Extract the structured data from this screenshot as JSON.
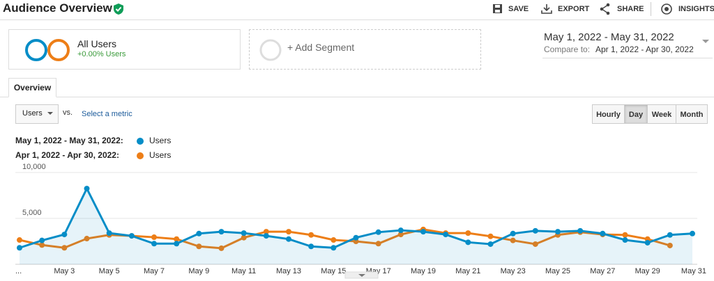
{
  "header": {
    "title": "Audience Overview",
    "actions": [
      "SAVE",
      "EXPORT",
      "SHARE",
      "INSIGHTS"
    ]
  },
  "segments": {
    "name": "All Users",
    "change": "+0.00% Users",
    "add": "+ Add Segment"
  },
  "date_range": {
    "range": "May 1, 2022 - May 31, 2022",
    "compare_label": "Compare to:",
    "compare": "Apr 1, 2022 - Apr 30, 2022"
  },
  "tab": "Overview",
  "metric": {
    "selected": "Users",
    "vs": "vs.",
    "select": "Select a metric"
  },
  "granularity": [
    "Hourly",
    "Day",
    "Week",
    "Month"
  ],
  "active_granularity": "Day",
  "chart_data": {
    "type": "line",
    "categories": [
      "...",
      null,
      "May 3",
      null,
      "May 5",
      null,
      "May 7",
      null,
      "May 9",
      null,
      "May 11",
      null,
      "May 13",
      null,
      "May 15",
      null,
      "May 17",
      null,
      "May 19",
      null,
      "May 21",
      null,
      "May 23",
      null,
      "May 25",
      null,
      "May 27",
      null,
      "May 29",
      null,
      "May 31"
    ],
    "ylim": [
      0,
      10000
    ],
    "yticks": [
      {
        "value": 5000,
        "label": "5,000"
      },
      {
        "value": 10000,
        "label": "10,000"
      }
    ],
    "grid": true,
    "series": [
      {
        "range": "May 1, 2022 - May 31, 2022:",
        "name": "Users",
        "color": "#058dc7",
        "area": true,
        "values": [
          1800,
          2600,
          3250,
          8250,
          3400,
          3100,
          2250,
          2250,
          3350,
          3550,
          3400,
          3100,
          2750,
          1950,
          1800,
          2900,
          3500,
          3700,
          3550,
          3250,
          2400,
          2200,
          3350,
          3650,
          3550,
          3650,
          3350,
          2650,
          2350,
          3200,
          3350
        ]
      },
      {
        "range": "Apr 1, 2022 - Apr 30, 2022:",
        "name": "Users",
        "color": "#ed7e17",
        "area": false,
        "values": [
          2650,
          2100,
          1800,
          2800,
          3200,
          3100,
          2950,
          2750,
          1950,
          1750,
          2900,
          3550,
          3550,
          3200,
          2650,
          2500,
          2250,
          3250,
          3800,
          3400,
          3400,
          3050,
          2600,
          2200,
          3200,
          3500,
          3250,
          3200,
          2750,
          2050,
          null
        ]
      }
    ]
  }
}
